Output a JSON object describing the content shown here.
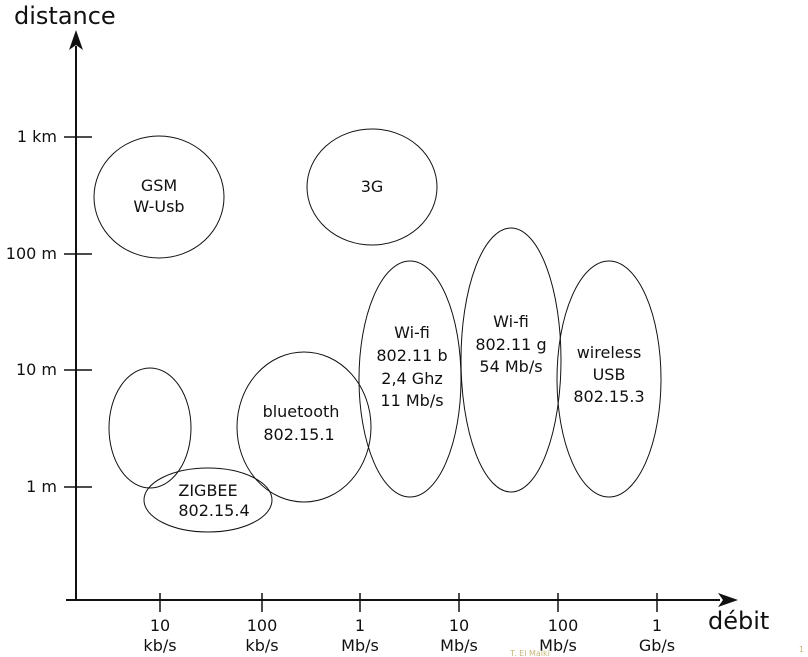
{
  "axes": {
    "y_title": "distance",
    "x_title": "débit",
    "y_ticks": [
      "1 km",
      "100 m",
      "10 m",
      "1 m"
    ],
    "x_ticks": [
      {
        "value": "10",
        "unit": "kb/s"
      },
      {
        "value": "100",
        "unit": "kb/s"
      },
      {
        "value": "1",
        "unit": "Mb/s"
      },
      {
        "value": "10",
        "unit": "Mb/s"
      },
      {
        "value": "100",
        "unit": "Mb/s"
      },
      {
        "value": "1",
        "unit": "Gb/s"
      }
    ]
  },
  "technologies": [
    {
      "id": "gsm",
      "lines": [
        "GSM",
        "W-Usb"
      ]
    },
    {
      "id": "3g",
      "lines": [
        "3G"
      ]
    },
    {
      "id": "unlabeled",
      "lines": []
    },
    {
      "id": "zigbee",
      "lines": [
        "ZIGBEE",
        "802.15.4"
      ]
    },
    {
      "id": "bluetooth",
      "lines": [
        "bluetooth",
        "802.15.1"
      ]
    },
    {
      "id": "wifi-b",
      "lines": [
        "Wi-fi",
        "802.11 b",
        "2,4 Ghz",
        "11 Mb/s"
      ]
    },
    {
      "id": "wifi-g",
      "lines": [
        "Wi-fi",
        "802.11 g",
        "54 Mb/s"
      ]
    },
    {
      "id": "wireless-usb",
      "lines": [
        "wireless",
        "USB",
        "802.15.3"
      ]
    }
  ],
  "credit": "T. El Malki",
  "page_mark": "1"
}
